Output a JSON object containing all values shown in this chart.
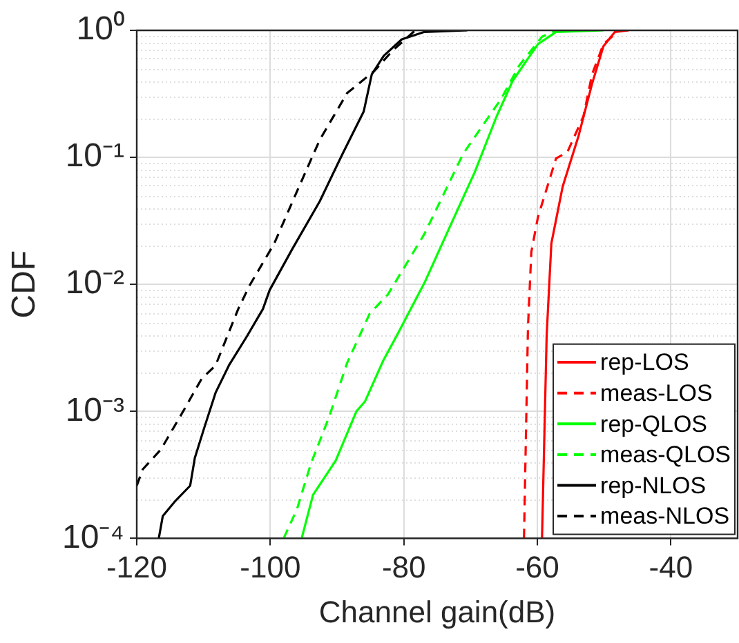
{
  "chart_data": {
    "type": "line",
    "xlabel": "Channel gain(dB)",
    "ylabel": "CDF",
    "xlim": [
      -120,
      -30
    ],
    "xticks": [
      -120,
      -100,
      -80,
      -60,
      -40
    ],
    "ylim": [
      0.0001,
      1
    ],
    "yticks": [
      {
        "value": 0.0001,
        "label": "10⁻⁴"
      },
      {
        "value": 0.001,
        "label": "10⁻³"
      },
      {
        "value": 0.01,
        "label": "10⁻²"
      },
      {
        "value": 0.1,
        "label": "10⁻¹"
      },
      {
        "value": 1,
        "label": "10⁰"
      }
    ],
    "log": "y",
    "grid": true,
    "legend": "bottom right",
    "marker": "none",
    "series": [
      {
        "name": "rep-LOS",
        "color": "#ff0000",
        "line_style": "solid",
        "x": [
          -59.3,
          -58.6,
          -57.9,
          -56.2,
          -53.8,
          -51.8,
          -50.1,
          -48.4,
          -46.3
        ],
        "values": [
          0.0001,
          0.004,
          0.021,
          0.059,
          0.149,
          0.38,
          0.75,
          0.97,
          1
        ]
      },
      {
        "name": "meas-LOS",
        "color": "#ff0000",
        "line_style": "dashed",
        "x": [
          -62.0,
          -61.4,
          -60.9,
          -59.9,
          -57.2,
          -55.5,
          -53.1,
          -51.8,
          -50.1,
          -47.7
        ],
        "values": [
          0.0001,
          0.0046,
          0.018,
          0.034,
          0.098,
          0.11,
          0.21,
          0.45,
          0.78,
          1
        ]
      },
      {
        "name": "rep-QLOS",
        "color": "#00ff00",
        "line_style": "solid",
        "x": [
          -95.3,
          -93.6,
          -90.2,
          -87.1,
          -85.8,
          -83.1,
          -81.0,
          -76.9,
          -72.9,
          -69.4,
          -66.1,
          -63.7,
          -59.9,
          -57.2,
          -50.1
        ],
        "values": [
          0.0001,
          0.00022,
          0.00041,
          0.001,
          0.0012,
          0.0025,
          0.004,
          0.0103,
          0.03,
          0.076,
          0.21,
          0.4,
          0.78,
          0.97,
          1
        ]
      },
      {
        "name": "meas-QLOS",
        "color": "#00ff00",
        "line_style": "dashed",
        "x": [
          -98.0,
          -96.0,
          -93.9,
          -91.2,
          -88.5,
          -85.1,
          -82.4,
          -76.9,
          -71.1,
          -65.4,
          -62.7,
          -59.3,
          -57.2
        ],
        "values": [
          0.0001,
          0.00017,
          0.00039,
          0.0009,
          0.0024,
          0.0059,
          0.0083,
          0.025,
          0.107,
          0.29,
          0.53,
          0.89,
          1
        ]
      },
      {
        "name": "rep-NLOS",
        "color": "#000000",
        "line_style": "solid",
        "x": [
          -116.7,
          -116.1,
          -114.3,
          -112.0,
          -111.3,
          -109.9,
          -108.2,
          -106.2,
          -103.5,
          -101.1,
          -100.1,
          -96.7,
          -92.6,
          -89.2,
          -86.0,
          -84.8,
          -83.0,
          -80.3,
          -77.0,
          -70.5
        ],
        "values": [
          0.0001,
          0.00015,
          0.000195,
          0.00026,
          0.00043,
          0.00074,
          0.0014,
          0.0023,
          0.0039,
          0.0064,
          0.009,
          0.019,
          0.045,
          0.106,
          0.23,
          0.45,
          0.63,
          0.85,
          0.97,
          1
        ]
      },
      {
        "name": "meas-NLOS",
        "color": "#000000",
        "line_style": "dashed",
        "x": [
          -120.0,
          -119.1,
          -116.4,
          -113.3,
          -110.3,
          -108.2,
          -104.8,
          -103.1,
          -99.4,
          -96.0,
          -92.6,
          -88.5,
          -84.4,
          -81.7,
          -78.3
        ],
        "values": [
          0.00026,
          0.00035,
          0.0005,
          0.00095,
          0.0018,
          0.0023,
          0.0064,
          0.0098,
          0.021,
          0.054,
          0.137,
          0.32,
          0.48,
          0.69,
          1
        ]
      }
    ]
  }
}
